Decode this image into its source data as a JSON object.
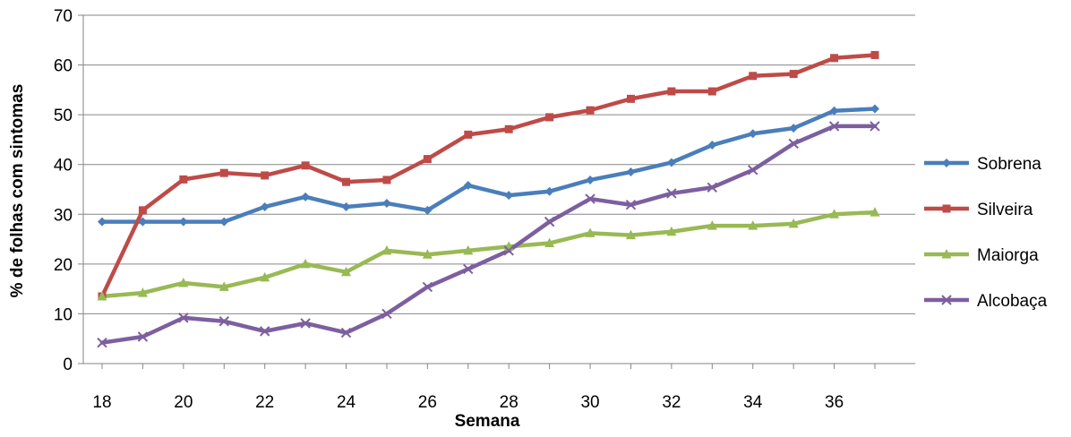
{
  "chart_data": {
    "type": "line",
    "title": "",
    "xlabel": "Semana",
    "ylabel": "% de folhas com sintomas",
    "x": [
      18,
      19,
      20,
      21,
      22,
      23,
      24,
      25,
      26,
      27,
      28,
      29,
      30,
      31,
      32,
      33,
      34,
      35,
      36,
      37
    ],
    "xticks": [
      18,
      20,
      22,
      24,
      26,
      28,
      30,
      32,
      34,
      36
    ],
    "xlim": [
      18,
      37
    ],
    "ylim": [
      0,
      70
    ],
    "yticks": [
      0,
      10,
      20,
      30,
      40,
      50,
      60,
      70
    ],
    "grid": "horizontal",
    "legend": "right",
    "series": [
      {
        "name": "Sobrena",
        "color": "#4a7ebb",
        "marker": "diamond",
        "values": [
          28.5,
          28.5,
          28.5,
          28.5,
          31.5,
          33.5,
          31.5,
          32.2,
          30.8,
          35.8,
          33.8,
          34.6,
          36.9,
          38.5,
          40.4,
          43.9,
          46.2,
          47.3,
          50.8,
          51.2
        ]
      },
      {
        "name": "Silveira",
        "color": "#be4b48",
        "marker": "square",
        "values": [
          13.5,
          30.8,
          37.0,
          38.3,
          37.8,
          39.8,
          36.5,
          36.9,
          41.1,
          46.0,
          47.1,
          49.5,
          50.9,
          53.2,
          54.7,
          54.7,
          57.8,
          58.2,
          61.4,
          62.0
        ]
      },
      {
        "name": "Maiorga",
        "color": "#98b954",
        "marker": "triangle",
        "values": [
          13.5,
          14.2,
          16.2,
          15.4,
          17.3,
          20.0,
          18.4,
          22.7,
          21.9,
          22.7,
          23.5,
          24.2,
          26.2,
          25.8,
          26.5,
          27.7,
          27.7,
          28.1,
          30.0,
          30.4
        ]
      },
      {
        "name": "Alcobaça",
        "color": "#7d5fa0",
        "marker": "x",
        "values": [
          4.2,
          5.4,
          9.2,
          8.5,
          6.5,
          8.1,
          6.2,
          10.0,
          15.4,
          19.0,
          22.7,
          28.5,
          33.1,
          31.9,
          34.2,
          35.4,
          38.9,
          44.2,
          47.7,
          47.7
        ]
      }
    ]
  }
}
